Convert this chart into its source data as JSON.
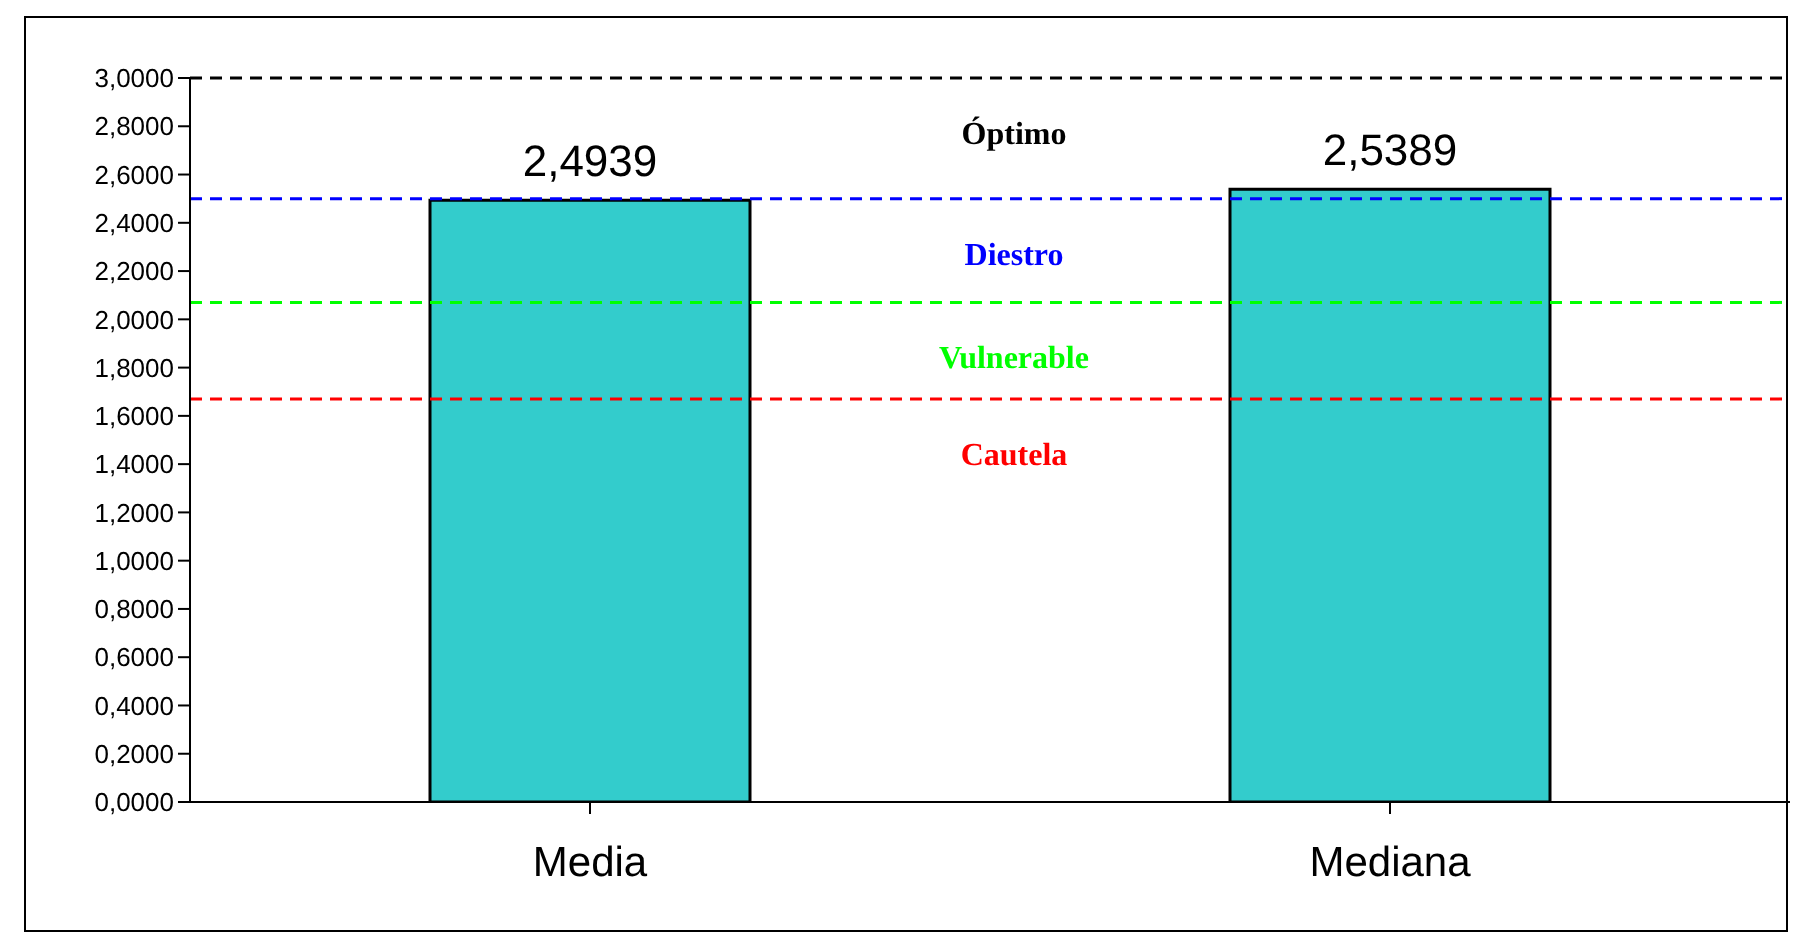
{
  "chart_data": {
    "type": "bar",
    "categories": [
      "Media",
      "Mediana"
    ],
    "values": [
      2.4939,
      2.5389
    ],
    "value_labels": [
      "2,4939",
      "2,5389"
    ],
    "color": "#33cccc",
    "ylim": [
      0,
      3
    ],
    "yticks": [
      {
        "value": 0,
        "label": "0,0000"
      },
      {
        "value": 0.2,
        "label": "0,2000"
      },
      {
        "value": 0.4,
        "label": "0,4000"
      },
      {
        "value": 0.6,
        "label": "0,6000"
      },
      {
        "value": 0.8,
        "label": "0,8000"
      },
      {
        "value": 1,
        "label": "1,0000"
      },
      {
        "value": 1.2,
        "label": "1,2000"
      },
      {
        "value": 1.4,
        "label": "1,4000"
      },
      {
        "value": 1.6,
        "label": "1,6000"
      },
      {
        "value": 1.8,
        "label": "1,8000"
      },
      {
        "value": 2,
        "label": "2,0000"
      },
      {
        "value": 2.2,
        "label": "2,2000"
      },
      {
        "value": 2.4,
        "label": "2,4000"
      },
      {
        "value": 2.6,
        "label": "2,6000"
      },
      {
        "value": 2.8,
        "label": "2,8000"
      },
      {
        "value": 3,
        "label": "3,0000"
      }
    ],
    "ref_lines": [
      {
        "axis": "y",
        "value": 3,
        "label": "Óptimo",
        "color": "#000000",
        "line_style": "dashed"
      },
      {
        "axis": "y",
        "value": 2.5,
        "label": "Diestro",
        "color": "#0000ff",
        "line_style": "dashed"
      },
      {
        "axis": "y",
        "value": 2.07,
        "label": "Vulnerable",
        "color": "#00ff00",
        "line_style": "dashed"
      },
      {
        "axis": "y",
        "value": 1.67,
        "label": "Cautela",
        "color": "#ff0000",
        "line_style": "dashed"
      }
    ],
    "grid": false,
    "legend": false
  }
}
